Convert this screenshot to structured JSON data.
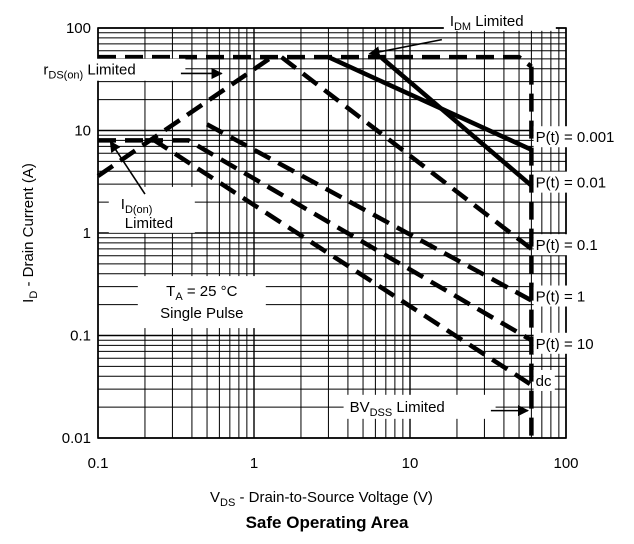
{
  "chart_data": {
    "type": "line",
    "title": "Safe Operating Area",
    "xlabel": {
      "main": "V",
      "sub": "DS",
      "rest": "  -   Drain-to-Source Voltage (V)"
    },
    "ylabel": {
      "main": "I",
      "sub": "D",
      "rest": "  -  Drain Current (A)"
    },
    "x_scale": "log",
    "y_scale": "log",
    "xlim": [
      0.1,
      100
    ],
    "ylim": [
      0.01,
      100
    ],
    "x_ticks": [
      {
        "value": 0.1,
        "label": "0.1"
      },
      {
        "value": 1,
        "label": "1"
      },
      {
        "value": 10,
        "label": "10"
      },
      {
        "value": 100,
        "label": "100"
      }
    ],
    "y_ticks": [
      {
        "value": 0.01,
        "label": "0.01"
      },
      {
        "value": 0.1,
        "label": "0.1"
      },
      {
        "value": 1,
        "label": "1"
      },
      {
        "value": 10,
        "label": "10"
      },
      {
        "value": 100,
        "label": "100"
      }
    ],
    "grid": true,
    "series": [
      {
        "name": "P(t) = 0.001",
        "style": "solid",
        "points": [
          [
            3,
            52
          ],
          [
            60,
            6.5
          ]
        ]
      },
      {
        "name": "P(t) = 0.01",
        "style": "solid",
        "points": [
          [
            6.5,
            52
          ],
          [
            60,
            2.9
          ]
        ]
      },
      {
        "name": "P(t) = 0.1",
        "style": "dashed",
        "points": [
          [
            1.5,
            52
          ],
          [
            60,
            0.7
          ]
        ]
      },
      {
        "name": "P(t) = 1",
        "style": "dashed",
        "points": [
          [
            0.1,
            3.6
          ],
          [
            1.3,
            52
          ]
        ]
      },
      {
        "name": "P(t) = 1",
        "style": "dashed",
        "points": [
          [
            0.5,
            11.5
          ],
          [
            60,
            0.22
          ]
        ]
      },
      {
        "name": "P(t) = 10",
        "style": "dashed",
        "points": [
          [
            0.2,
            8
          ],
          [
            0.38,
            8
          ],
          [
            60,
            0.09
          ]
        ]
      },
      {
        "name": "dc",
        "style": "dashed",
        "points": [
          [
            0.1,
            8
          ],
          [
            0.23,
            8
          ],
          [
            60,
            0.033
          ]
        ]
      },
      {
        "name": "IDM Limited",
        "style": "dashed",
        "points": [
          [
            0.1,
            52
          ],
          [
            50,
            52
          ],
          [
            60,
            42
          ]
        ]
      },
      {
        "name": "BVDSS Limited",
        "style": "dashed",
        "points": [
          [
            60,
            42
          ],
          [
            60,
            0.01
          ]
        ]
      }
    ],
    "curve_labels": [
      {
        "text": "P(t) = 0.001",
        "x": 62,
        "y": 8.6
      },
      {
        "text": "P(t) = 0.01",
        "x": 62,
        "y": 3.1
      },
      {
        "text": "P(t) = 0.1",
        "x": 62,
        "y": 0.76
      },
      {
        "text": "P(t) = 1",
        "x": 62,
        "y": 0.24
      },
      {
        "text": "P(t) = 10",
        "x": 62,
        "y": 0.083
      },
      {
        "text": "dc",
        "x": 62,
        "y": 0.036
      }
    ],
    "annotations": [
      {
        "id": "idm",
        "main": "I",
        "sub": "DM",
        "rest": " Limited",
        "line2": "",
        "x": 18,
        "y": 105,
        "arrow_from": [
          16,
          77
        ],
        "arrow_to": [
          5.5,
          56
        ]
      },
      {
        "id": "rds",
        "main": "r",
        "sub": "DS(on)",
        "rest": " Limited",
        "line2": "",
        "x": 0.083,
        "y": 35,
        "arrow_from": [
          0.34,
          36
        ],
        "arrow_to": [
          0.62,
          36
        ]
      },
      {
        "id": "idon",
        "main": "I",
        "sub": "D(on)",
        "rest": "",
        "line2": "Limited",
        "x": 0.14,
        "y": 1.72,
        "arrow_from": [
          0.2,
          2.4
        ],
        "arrow_to": [
          0.12,
          7.8
        ]
      },
      {
        "id": "bvdss",
        "main": "BV",
        "sub": "DSS",
        "rest": " Limited",
        "line2": "",
        "x": 4.1,
        "y": 0.018,
        "arrow_from": [
          33,
          0.0185
        ],
        "arrow_to": [
          57,
          0.0185
        ]
      }
    ],
    "condition_box": {
      "line1": {
        "main": "T",
        "sub": "A",
        "rest": " = 25 °C"
      },
      "line2": "Single Pulse"
    }
  }
}
